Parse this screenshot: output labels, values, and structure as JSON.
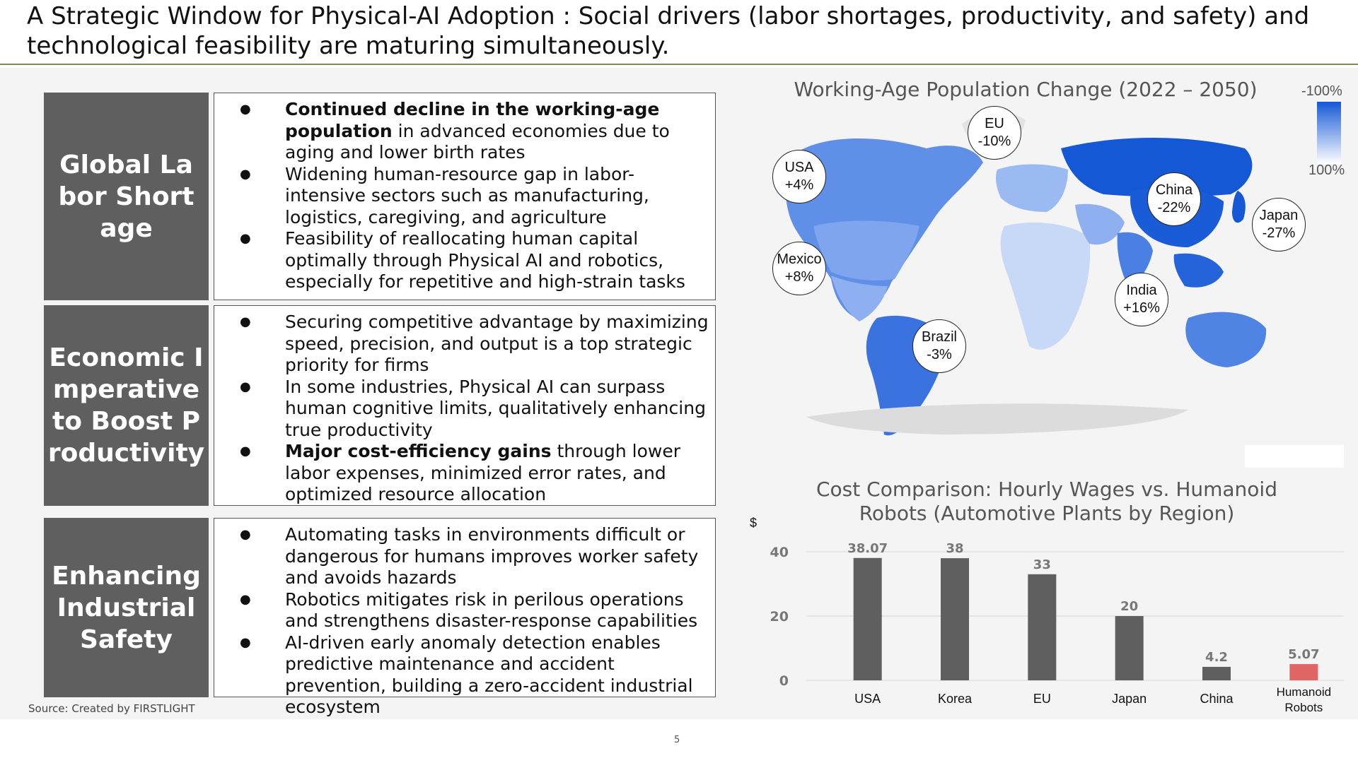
{
  "slide": {
    "title": "A Strategic Window for Physical-AI Adoption : Social drivers (labor shortages, productivity, and safety) and technological feasibility are maturing simultaneously.",
    "source": "Source: Created by FIRSTLIGHT",
    "page_number": "5"
  },
  "drivers": [
    {
      "label": "Global Labor Shortage",
      "bullets": [
        {
          "bold": "Continued decline in the working-age population",
          "text": " in advanced economies due to aging and lower birth rates"
        },
        {
          "bold": "",
          "text": "Widening human-resource gap in labor-intensive sectors such as manufacturing, logistics, caregiving, and agriculture"
        },
        {
          "bold": "",
          "text": "Feasibility of reallocating human capital optimally through Physical AI and robotics, especially for repetitive and high-strain tasks"
        }
      ]
    },
    {
      "label": "Economic Imperative to Boost Productivity",
      "bullets": [
        {
          "bold": "",
          "text": "Securing competitive advantage by maximizing speed, precision, and output is a top strategic priority for firms"
        },
        {
          "bold": "",
          "text": "In some industries, Physical AI can surpass human cognitive limits, qualitatively enhancing true productivity"
        },
        {
          "bold": "Major cost-efficiency gains",
          "text": " through lower labor expenses, minimized error rates, and optimized resource allocation"
        }
      ]
    },
    {
      "label": "Enhancing Industrial Safety",
      "bullets": [
        {
          "bold": "",
          "text": "Automating tasks in environments difficult or dangerous for humans improves worker safety and avoids hazards"
        },
        {
          "bold": "",
          "text": "Robotics mitigates risk in perilous operations and strengthens disaster-response capabilities"
        },
        {
          "bold": "",
          "text": "AI-driven early anomaly detection enables predictive maintenance and accident prevention, building a zero-accident industrial ecosystem"
        }
      ]
    }
  ],
  "map": {
    "title": "Working-Age Population Change (2022 – 2050)",
    "legend_top": "-100%",
    "legend_bottom": "100%",
    "scale_color_low": "#1558d6",
    "scale_color_high": "#ffffff",
    "regions": [
      {
        "name": "EU",
        "value": "-10%"
      },
      {
        "name": "USA",
        "value": "+4%"
      },
      {
        "name": "China",
        "value": "-22%"
      },
      {
        "name": "Japan",
        "value": "-27%"
      },
      {
        "name": "Mexico",
        "value": "+8%"
      },
      {
        "name": "India",
        "value": "+16%"
      },
      {
        "name": "Brazil",
        "value": "-3%"
      }
    ]
  },
  "chart_data": {
    "type": "bar",
    "title": "Cost Comparison: Hourly Wages vs. Humanoid Robots (Automotive Plants by Region)",
    "ylabel": "$",
    "xlabel": "",
    "categories": [
      "USA",
      "Korea",
      "EU",
      "Japan",
      "China",
      "Humanoid Robots"
    ],
    "values": [
      38.07,
      38,
      33,
      20,
      4.2,
      5.07
    ],
    "value_labels": [
      "38.07",
      "38",
      "33",
      "20",
      "4.2",
      "5.07"
    ],
    "bar_colors": [
      "#5f5f5f",
      "#5f5f5f",
      "#5f5f5f",
      "#5f5f5f",
      "#5f5f5f",
      "#e06666"
    ],
    "yticks": [
      0,
      20,
      40
    ],
    "ylim": [
      0,
      40
    ],
    "grid": true,
    "legend": "none"
  }
}
